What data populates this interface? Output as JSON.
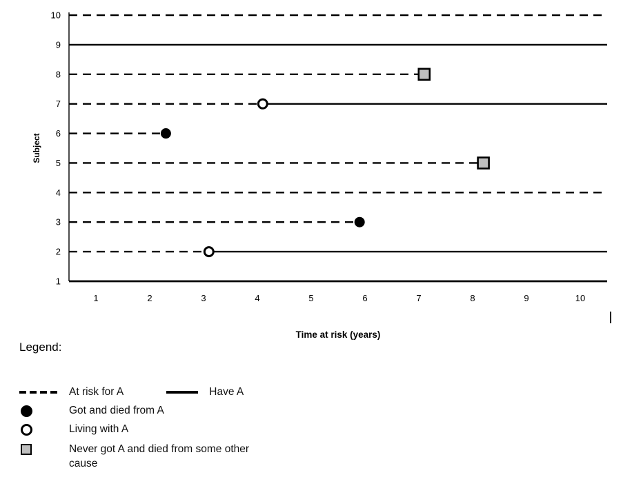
{
  "chart_data": {
    "type": "line",
    "title": "",
    "xlabel": "Time at risk (years)",
    "ylabel": "Subject",
    "xlim": [
      0.5,
      10.5
    ],
    "ylim": [
      1,
      10
    ],
    "xticks": [
      "1",
      "2",
      "3",
      "4",
      "5",
      "6",
      "7",
      "8",
      "9",
      "10"
    ],
    "yticks": [
      "1",
      "2",
      "3",
      "4",
      "5",
      "6",
      "7",
      "8",
      "9",
      "10"
    ],
    "grid": false,
    "legend_position": "below",
    "colors": {
      "line": "#000000",
      "filled_marker": "#000000",
      "open_marker_fill": "#ffffff",
      "square_fill": "#bfbfbf"
    },
    "subjects": [
      {
        "subject": 10,
        "segments": [
          {
            "style": "dashed",
            "x0": 0.5,
            "x1": 10.5
          }
        ],
        "marker": null
      },
      {
        "subject": 9,
        "segments": [
          {
            "style": "solid",
            "x0": 0.5,
            "x1": 10.5
          }
        ],
        "marker": null
      },
      {
        "subject": 8,
        "segments": [
          {
            "style": "dashed",
            "x0": 0.5,
            "x1": 7.1
          }
        ],
        "marker": {
          "type": "gray-square",
          "x": 7.1
        }
      },
      {
        "subject": 7,
        "segments": [
          {
            "style": "dashed",
            "x0": 0.5,
            "x1": 4.1
          },
          {
            "style": "solid",
            "x0": 4.1,
            "x1": 10.5
          }
        ],
        "marker": {
          "type": "open-circle",
          "x": 4.1
        }
      },
      {
        "subject": 6,
        "segments": [
          {
            "style": "dashed",
            "x0": 0.5,
            "x1": 2.3
          }
        ],
        "marker": {
          "type": "filled-circle",
          "x": 2.3
        }
      },
      {
        "subject": 5,
        "segments": [
          {
            "style": "dashed",
            "x0": 0.5,
            "x1": 8.2
          }
        ],
        "marker": {
          "type": "gray-square",
          "x": 8.2
        }
      },
      {
        "subject": 4,
        "segments": [
          {
            "style": "dashed",
            "x0": 0.5,
            "x1": 10.5
          }
        ],
        "marker": null
      },
      {
        "subject": 3,
        "segments": [
          {
            "style": "dashed",
            "x0": 0.5,
            "x1": 5.9
          }
        ],
        "marker": {
          "type": "filled-circle",
          "x": 5.9
        }
      },
      {
        "subject": 2,
        "segments": [
          {
            "style": "dashed",
            "x0": 0.5,
            "x1": 3.1
          },
          {
            "style": "solid",
            "x0": 3.1,
            "x1": 10.5
          }
        ],
        "marker": {
          "type": "open-circle",
          "x": 3.1
        }
      },
      {
        "subject": 1,
        "segments": [
          {
            "style": "solid",
            "x0": 0.5,
            "x1": 10.5
          }
        ],
        "marker": null
      }
    ]
  },
  "legend": {
    "heading": "Legend:",
    "items": [
      {
        "symbol": "dashed-line",
        "label": "At risk for A"
      },
      {
        "symbol": "solid-line",
        "label": "Have A"
      },
      {
        "symbol": "filled-circle",
        "label": "Got and died from A"
      },
      {
        "symbol": "open-circle",
        "label": "Living with A"
      },
      {
        "symbol": "gray-square",
        "label": "Never got A and died from some other cause"
      }
    ]
  }
}
